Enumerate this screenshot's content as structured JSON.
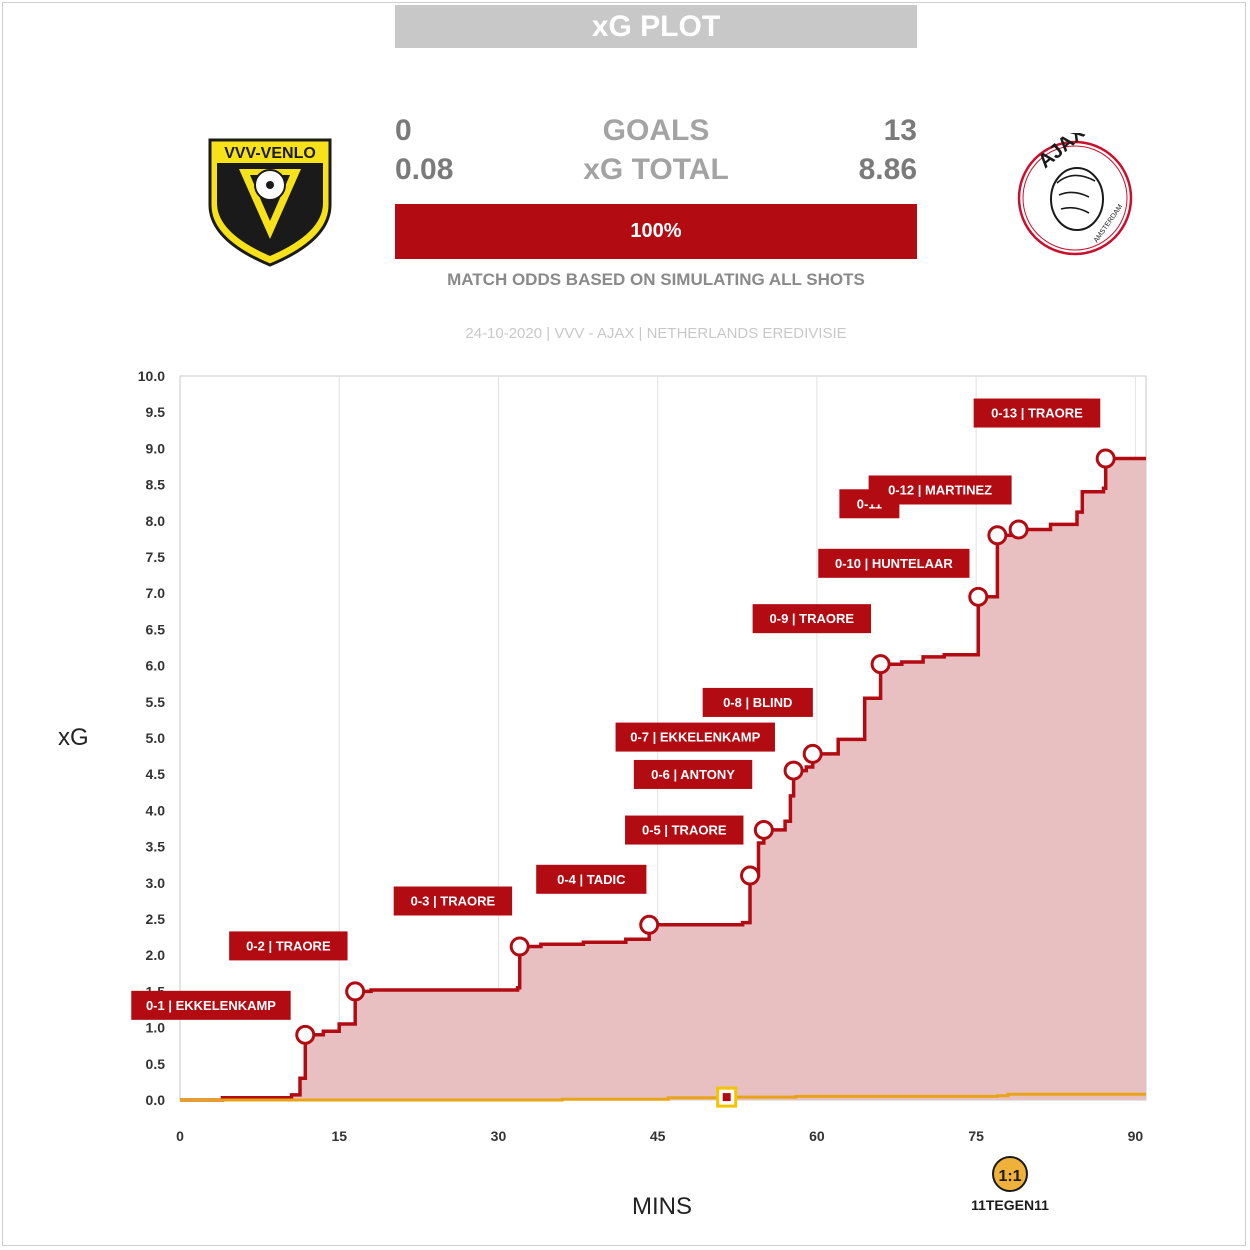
{
  "title": "xG PLOT",
  "stats": {
    "home_goals": "0",
    "goals_label": "GOALS",
    "away_goals": "13",
    "home_xg": "0.08",
    "xg_label": "xG TOTAL",
    "away_xg": "8.86"
  },
  "odds": {
    "label": "100%",
    "note": "MATCH ODDS BASED ON SIMULATING ALL SHOTS"
  },
  "match_info": "24-10-2020 | VVV - AJAX | NETHERLANDS EREDIVISIE",
  "home_logo_text": "VVV-VENLO",
  "away_logo_text": "AJAX",
  "away_logo_subtext": "AMSTERDAM",
  "brand": "11TEGEN11",
  "colors": {
    "away": "#b20b12",
    "away_fill": "#e8c0c2",
    "home": "#e8a317",
    "grid": "#e2e2e2"
  },
  "chart_data": {
    "type": "area",
    "xlabel": "MINS",
    "ylabel": "xG",
    "xlim": [
      0,
      91
    ],
    "ylim": [
      0,
      10
    ],
    "x_ticks": [
      "0",
      "15",
      "30",
      "45",
      "60",
      "75",
      "90"
    ],
    "y_ticks": [
      "0.0",
      "0.5",
      "1.0",
      "1.5",
      "2.0",
      "2.5",
      "3.0",
      "3.5",
      "4.0",
      "4.5",
      "5.0",
      "5.5",
      "6.0",
      "6.5",
      "7.0",
      "7.5",
      "8.0",
      "8.5",
      "9.0",
      "9.5",
      "10.0"
    ],
    "series": [
      {
        "team": "away",
        "steps": [
          [
            0,
            0
          ],
          [
            4,
            0.03
          ],
          [
            10.5,
            0.07
          ],
          [
            11.3,
            0.3
          ],
          [
            11.8,
            0.9
          ],
          [
            13.5,
            0.95
          ],
          [
            15,
            1.05
          ],
          [
            16.5,
            1.5
          ],
          [
            18,
            1.52
          ],
          [
            31.8,
            1.55
          ],
          [
            32,
            2.12
          ],
          [
            34,
            2.15
          ],
          [
            38,
            2.18
          ],
          [
            42,
            2.22
          ],
          [
            44.2,
            2.42
          ],
          [
            53,
            2.45
          ],
          [
            53.7,
            3.1
          ],
          [
            54.5,
            3.55
          ],
          [
            55,
            3.73
          ],
          [
            57,
            3.85
          ],
          [
            57.5,
            4.2
          ],
          [
            57.8,
            4.55
          ],
          [
            59,
            4.6
          ],
          [
            59.6,
            4.78
          ],
          [
            62,
            4.98
          ],
          [
            64.5,
            5.55
          ],
          [
            66,
            6.02
          ],
          [
            68,
            6.05
          ],
          [
            70,
            6.12
          ],
          [
            72,
            6.15
          ],
          [
            75.2,
            6.95
          ],
          [
            77,
            7.8
          ],
          [
            79,
            7.88
          ],
          [
            82,
            7.95
          ],
          [
            84.5,
            8.12
          ],
          [
            85,
            8.4
          ],
          [
            87,
            8.45
          ],
          [
            87.2,
            8.86
          ],
          [
            91,
            8.86
          ]
        ]
      },
      {
        "team": "home",
        "steps": [
          [
            0,
            0
          ],
          [
            36,
            0.01
          ],
          [
            46,
            0.03
          ],
          [
            51.5,
            0.04
          ],
          [
            58,
            0.05
          ],
          [
            77,
            0.06
          ],
          [
            78,
            0.08
          ],
          [
            91,
            0.08
          ]
        ]
      }
    ],
    "goals": [
      {
        "minute": 11.8,
        "xg": 0.9,
        "label": "0-1 | EKKELENKAMP"
      },
      {
        "minute": 16.5,
        "xg": 1.5,
        "label": "0-2 | TRAORE"
      },
      {
        "minute": 32,
        "xg": 2.12,
        "label": "0-3 | TRAORE"
      },
      {
        "minute": 44.2,
        "xg": 2.42,
        "label": "0-4 | TADIC"
      },
      {
        "minute": 53.7,
        "xg": 3.1,
        "label": "0-5 | TRAORE"
      },
      {
        "minute": 55,
        "xg": 3.73,
        "label": "0-6 | ANTONY"
      },
      {
        "minute": 57.8,
        "xg": 4.55,
        "label": "0-7 | EKKELENKAMP"
      },
      {
        "minute": 59.6,
        "xg": 4.78,
        "label": "0-8 | BLIND"
      },
      {
        "minute": 66,
        "xg": 6.02,
        "label": "0-9 | TRAORE"
      },
      {
        "minute": 75.2,
        "xg": 6.95,
        "label": "0-10 | HUNTELAAR"
      },
      {
        "minute": 77,
        "xg": 7.8,
        "label": "0-11"
      },
      {
        "minute": 79,
        "xg": 7.88,
        "label": "0-12 | MARTINEZ"
      },
      {
        "minute": 87.2,
        "xg": 8.86,
        "label": "0-13 | TRAORE"
      }
    ],
    "home_events": [
      {
        "minute": 51.5,
        "xg": 0.04
      }
    ]
  }
}
